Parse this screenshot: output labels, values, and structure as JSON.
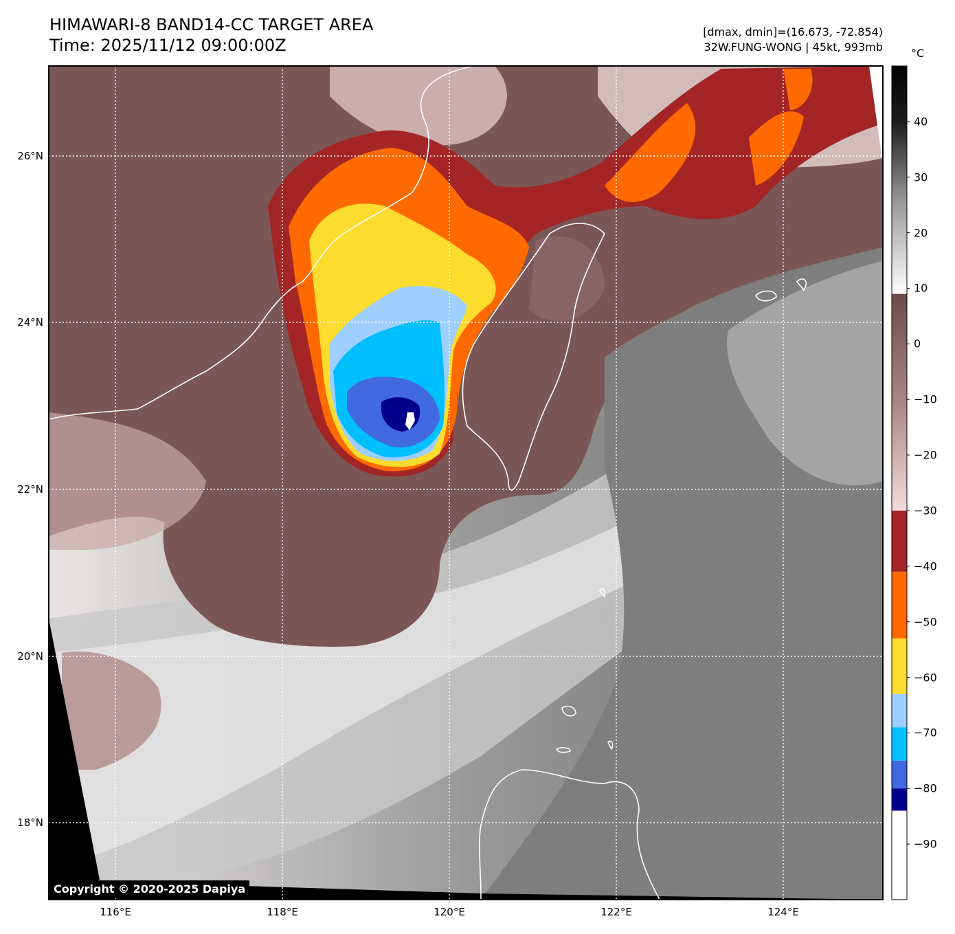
{
  "header": {
    "title": "HIMAWARI-8 BAND14-CC TARGET AREA",
    "time": "Time: 2025/11/12 09:00:00Z",
    "dminmax": "[dmax, dmin]=(16.673, -72.854)",
    "storm": "32W.FUNG-WONG | 45kt, 993mb"
  },
  "map": {
    "lat_labels": [
      "26°N",
      "24°N",
      "22°N",
      "20°N",
      "18°N"
    ],
    "lon_labels": [
      "116°E",
      "118°E",
      "120°E",
      "122°E",
      "124°E"
    ],
    "lat_ticks": [
      26,
      24,
      22,
      20,
      18
    ],
    "lon_ticks": [
      116,
      118,
      120,
      122,
      124
    ]
  },
  "colorbar": {
    "unit": "°C",
    "ticks": [
      "40",
      "30",
      "20",
      "10",
      "0",
      "−10",
      "−20",
      "−30",
      "−40",
      "−50",
      "−60",
      "−70",
      "−80",
      "−90"
    ],
    "tick_values": [
      40,
      30,
      20,
      10,
      0,
      -10,
      -20,
      -30,
      -40,
      -50,
      -60,
      -70,
      -80,
      -90
    ],
    "range": [
      -100,
      50
    ],
    "bands": [
      {
        "from": 50,
        "to": 9,
        "color": "gray-gradient"
      },
      {
        "from": 9,
        "to": -30,
        "color": "#6e4a4a"
      },
      {
        "from": -30,
        "to": -41,
        "color": "#a32525"
      },
      {
        "from": -41,
        "to": -53,
        "color": "#ff6a00"
      },
      {
        "from": -53,
        "to": -63,
        "color": "#fcdc2f"
      },
      {
        "from": -63,
        "to": -69,
        "color": "#9fcfff"
      },
      {
        "from": -69,
        "to": -75,
        "color": "#00bfff"
      },
      {
        "from": -75,
        "to": -80,
        "color": "#4169e1"
      },
      {
        "from": -80,
        "to": -84,
        "color": "#00008b"
      },
      {
        "from": -84,
        "to": -100,
        "color": "#ffffff"
      }
    ]
  },
  "copyright": "Copyright © 2020-2025 Dapiya"
}
